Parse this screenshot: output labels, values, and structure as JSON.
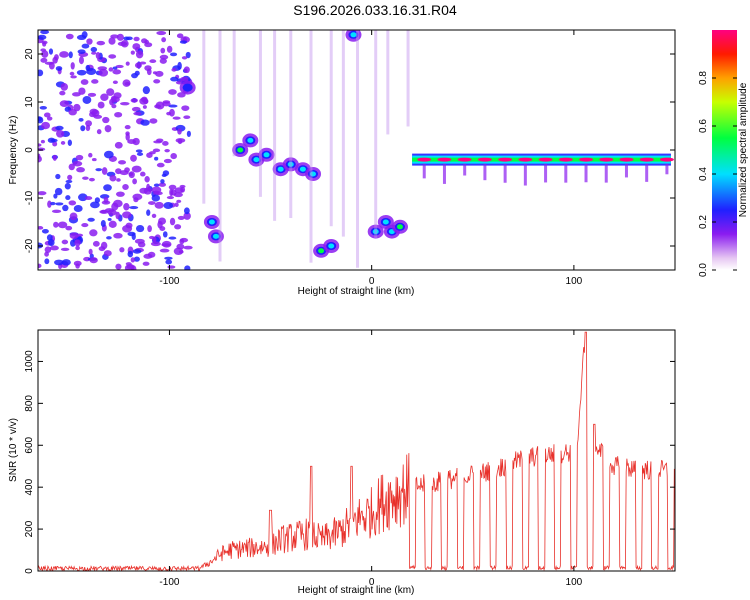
{
  "title": "S196.2026.033.16.31.R04",
  "colors": {
    "snr_line": "#e8302a",
    "frame": "#000000"
  },
  "chart_data": [
    {
      "type": "heatmap",
      "xlabel": "Height of straight line (km)",
      "ylabel": "Frequency (Hz)",
      "xlim": [
        -165,
        150
      ],
      "ylim": [
        -25,
        25
      ],
      "xticks": [
        -100,
        0,
        100
      ],
      "yticks": [
        -20,
        -10,
        0,
        10,
        20
      ],
      "colorbar": {
        "label": "Normalized spectral amplitude",
        "range": [
          0.0,
          1.0
        ],
        "ticks": [
          "0.0",
          "0.2",
          "0.4",
          "0.6",
          "0.8"
        ]
      },
      "features": [
        {
          "x_range": [
            -165,
            -90
          ],
          "freq_range": [
            -25,
            25
          ],
          "amplitude": 0.1
        },
        {
          "x": -91,
          "freq": 13,
          "amplitude": 0.25
        },
        {
          "x": -79,
          "freq": -15,
          "amplitude": 0.35
        },
        {
          "x": -77,
          "freq": -18,
          "amplitude": 0.3
        },
        {
          "x": -65,
          "freq": 0,
          "amplitude": 0.45
        },
        {
          "x": -60,
          "freq": 2,
          "amplitude": 0.35
        },
        {
          "x": -57,
          "freq": -2,
          "amplitude": 0.4
        },
        {
          "x": -52,
          "freq": -1,
          "amplitude": 0.3
        },
        {
          "x": -45,
          "freq": -4,
          "amplitude": 0.3
        },
        {
          "x": -40,
          "freq": -3,
          "amplitude": 0.4
        },
        {
          "x": -34,
          "freq": -4,
          "amplitude": 0.35
        },
        {
          "x": -29,
          "freq": -5,
          "amplitude": 0.3
        },
        {
          "x": -25,
          "freq": -21,
          "amplitude": 0.45
        },
        {
          "x": -20,
          "freq": -20,
          "amplitude": 0.35
        },
        {
          "x": -9,
          "freq": 24,
          "amplitude": 0.4
        },
        {
          "x": 2,
          "freq": -17,
          "amplitude": 0.4
        },
        {
          "x": 7,
          "freq": -15,
          "amplitude": 0.3
        },
        {
          "x": 10,
          "freq": -17,
          "amplitude": 0.4
        },
        {
          "x": 14,
          "freq": -16,
          "amplitude": 0.45
        },
        {
          "x_range": [
            20,
            148
          ],
          "freq": -2,
          "amplitude": 0.95
        }
      ]
    },
    {
      "type": "line",
      "xlabel": "Height of straight line (km)",
      "ylabel": "SNR (10 * v/v)",
      "xlim": [
        -165,
        150
      ],
      "ylim": [
        0,
        1150
      ],
      "xticks": [
        -100,
        0,
        100
      ],
      "yticks": [
        0,
        200,
        400,
        600,
        800,
        1000
      ],
      "envelope": {
        "x": [
          -165,
          -130,
          -100,
          -85,
          -80,
          -75,
          -70,
          -60,
          -50,
          -45,
          -40,
          -35,
          -30,
          -25,
          -20,
          -15,
          -10,
          -5,
          0,
          5,
          10,
          15,
          20,
          30,
          40,
          50,
          60,
          70,
          80,
          90,
          100,
          102,
          105,
          107,
          110,
          115,
          120,
          130,
          140,
          150
        ],
        "y": [
          10,
          10,
          10,
          15,
          40,
          80,
          100,
          110,
          120,
          150,
          160,
          170,
          180,
          150,
          170,
          190,
          230,
          260,
          280,
          330,
          360,
          380,
          400,
          420,
          440,
          460,
          480,
          520,
          545,
          560,
          570,
          580,
          1120,
          800,
          590,
          560,
          500,
          490,
          480,
          480
        ]
      },
      "spikes": [
        {
          "x": -50,
          "y": 290
        },
        {
          "x": -30,
          "y": 500
        },
        {
          "x": -10,
          "y": 500
        },
        {
          "x": 106,
          "y": 1140
        },
        {
          "x": 110,
          "y": 700
        }
      ],
      "dropouts_x": [
        20,
        28,
        36,
        44,
        52,
        60,
        68,
        76,
        84,
        92,
        100,
        108,
        116,
        124,
        132,
        140,
        148
      ]
    }
  ]
}
